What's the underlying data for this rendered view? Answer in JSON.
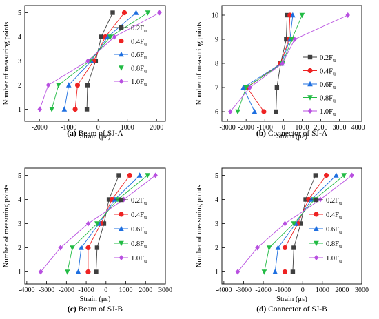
{
  "figure": {
    "panels": [
      {
        "caption_letter": "(a)",
        "caption_text": "Beam of SJ-A",
        "xlabel": "Strain",
        "xunit": "(με)",
        "ylabel": "Number of measuring points",
        "legend_base": "F",
        "legend_sub": "u",
        "legend_labels": [
          "0.2",
          "0.4",
          "0.6",
          "0.8",
          "1.0"
        ]
      },
      {
        "caption_letter": "(b)",
        "caption_text": "Connector of SJ-A",
        "xlabel": "Strain",
        "xunit": "(με)",
        "ylabel": "Number of measuring points",
        "legend_base": "F",
        "legend_sub": "u",
        "legend_labels": [
          "0.2",
          "0.4",
          "0.6",
          "0.8",
          "1.0"
        ]
      },
      {
        "caption_letter": "(c)",
        "caption_text": "Beam of SJ-B",
        "xlabel": "Strain",
        "xunit": "(με)",
        "ylabel": "Number of measuring points",
        "legend_base": "F",
        "legend_sub": "u",
        "legend_labels": [
          "0.2",
          "0.4",
          "0.6",
          "0.8",
          "1.0"
        ]
      },
      {
        "caption_letter": "(d)",
        "caption_text": "Connector of SJ-B",
        "xlabel": "Strain",
        "xunit": "(με)",
        "ylabel": "Number of measuring points",
        "legend_base": "F",
        "legend_sub": "u",
        "legend_labels": [
          "0.2",
          "0.4",
          "0.6",
          "0.8",
          "1.0"
        ]
      }
    ]
  },
  "colors": {
    "series": [
      "#3f3f3f",
      "#ee2222",
      "#1e6fe0",
      "#22bb44",
      "#b84fe0"
    ],
    "markers": [
      "square",
      "circle",
      "triangle-up",
      "triangle-down",
      "diamond"
    ]
  },
  "chart_data": [
    {
      "type": "line",
      "title": "Beam of SJ-A",
      "xlabel": "Strain (με)",
      "ylabel": "Number of measuring points",
      "xlim": [
        -2500,
        2300
      ],
      "ylim": [
        0.5,
        5.3
      ],
      "xticks": [
        -2000,
        -1000,
        0,
        1000,
        2000
      ],
      "yticks": [
        1,
        2,
        3,
        4,
        5
      ],
      "legend": "right",
      "grid": false,
      "series": [
        {
          "name": "0.2Fu",
          "points": [
            [
              -380,
              1
            ],
            [
              -360,
              2
            ],
            [
              -80,
              3
            ],
            [
              110,
              4
            ],
            [
              500,
              5
            ]
          ]
        },
        {
          "name": "0.4Fu",
          "points": [
            [
              -780,
              1
            ],
            [
              -700,
              2
            ],
            [
              -150,
              3
            ],
            [
              250,
              4
            ],
            [
              900,
              5
            ]
          ]
        },
        {
          "name": "0.6Fu",
          "points": [
            [
              -1150,
              1
            ],
            [
              -1000,
              2
            ],
            [
              -230,
              3
            ],
            [
              330,
              4
            ],
            [
              1300,
              5
            ]
          ]
        },
        {
          "name": "0.8Fu",
          "points": [
            [
              -1580,
              1
            ],
            [
              -1350,
              2
            ],
            [
              -280,
              3
            ],
            [
              420,
              4
            ],
            [
              1700,
              5
            ]
          ]
        },
        {
          "name": "1.0Fu",
          "points": [
            [
              -1990,
              1
            ],
            [
              -1700,
              2
            ],
            [
              -350,
              3
            ],
            [
              560,
              4
            ],
            [
              2100,
              5
            ]
          ]
        }
      ]
    },
    {
      "type": "line",
      "title": "Connector of SJ-A",
      "xlabel": "Strain (με)",
      "ylabel": "Number of measuring points",
      "xlim": [
        -3300,
        4200
      ],
      "ylim": [
        5.6,
        10.4
      ],
      "xticks": [
        -3000,
        -2000,
        -1000,
        0,
        1000,
        2000,
        3000,
        4000
      ],
      "yticks": [
        6,
        7,
        8,
        9,
        10
      ],
      "legend": "right",
      "grid": false,
      "series": [
        {
          "name": "0.2Fu",
          "points": [
            [
              -400,
              6
            ],
            [
              -350,
              7
            ],
            [
              -150,
              8
            ],
            [
              150,
              9
            ],
            [
              200,
              10
            ]
          ]
        },
        {
          "name": "0.4Fu",
          "points": [
            [
              -1050,
              6
            ],
            [
              -1950,
              7
            ],
            [
              -150,
              8
            ],
            [
              300,
              9
            ],
            [
              350,
              10
            ]
          ]
        },
        {
          "name": "0.6Fu",
          "points": [
            [
              -1550,
              6
            ],
            [
              -2150,
              7
            ],
            [
              -100,
              8
            ],
            [
              350,
              9
            ],
            [
              500,
              10
            ]
          ]
        },
        {
          "name": "0.8Fu",
          "points": [
            [
              -2450,
              6
            ],
            [
              -2000,
              7
            ],
            [
              -50,
              8
            ],
            [
              450,
              9
            ],
            [
              1000,
              10
            ]
          ]
        },
        {
          "name": "1.0Fu",
          "points": [
            [
              -2850,
              6
            ],
            [
              -1800,
              7
            ],
            [
              -50,
              8
            ],
            [
              600,
              9
            ],
            [
              3450,
              10
            ]
          ]
        }
      ]
    },
    {
      "type": "line",
      "title": "Beam of SJ-B",
      "xlabel": "Strain (με)",
      "ylabel": "Number of measuring points",
      "xlim": [
        -4100,
        3000
      ],
      "ylim": [
        0.5,
        5.3
      ],
      "xticks": [
        -4000,
        -3000,
        -2000,
        -1000,
        0,
        1000,
        2000,
        3000
      ],
      "yticks": [
        1,
        2,
        3,
        4,
        5
      ],
      "legend": "right",
      "grid": false,
      "series": [
        {
          "name": "0.2Fu",
          "points": [
            [
              -500,
              1
            ],
            [
              -450,
              2
            ],
            [
              -100,
              3
            ],
            [
              150,
              4
            ],
            [
              650,
              5
            ]
          ]
        },
        {
          "name": "0.4Fu",
          "points": [
            [
              -900,
              1
            ],
            [
              -900,
              2
            ],
            [
              -250,
              3
            ],
            [
              300,
              4
            ],
            [
              1200,
              5
            ]
          ]
        },
        {
          "name": "0.6Fu",
          "points": [
            [
              -1400,
              1
            ],
            [
              -1250,
              2
            ],
            [
              -350,
              3
            ],
            [
              450,
              4
            ],
            [
              1700,
              5
            ]
          ]
        },
        {
          "name": "0.8Fu",
          "points": [
            [
              -1950,
              1
            ],
            [
              -1700,
              2
            ],
            [
              -450,
              3
            ],
            [
              600,
              4
            ],
            [
              2100,
              5
            ]
          ]
        },
        {
          "name": "1.0Fu",
          "points": [
            [
              -3300,
              1
            ],
            [
              -2300,
              2
            ],
            [
              -900,
              3
            ],
            [
              900,
              4
            ],
            [
              2500,
              5
            ]
          ]
        }
      ]
    },
    {
      "type": "line",
      "title": "Connector of SJ-B",
      "xlabel": "Strain (με)",
      "ylabel": "Number of measuring points",
      "xlim": [
        -4100,
        3000
      ],
      "ylim": [
        0.5,
        5.3
      ],
      "xticks": [
        -4000,
        -3000,
        -2000,
        -1000,
        0,
        1000,
        2000,
        3000
      ],
      "yticks": [
        1,
        2,
        3,
        4,
        5
      ],
      "legend": "right",
      "grid": false,
      "series": [
        {
          "name": "0.2Fu",
          "points": [
            [
              -500,
              1
            ],
            [
              -450,
              2
            ],
            [
              -100,
              3
            ],
            [
              150,
              4
            ],
            [
              650,
              5
            ]
          ]
        },
        {
          "name": "0.4Fu",
          "points": [
            [
              -900,
              1
            ],
            [
              -900,
              2
            ],
            [
              -250,
              3
            ],
            [
              300,
              4
            ],
            [
              1200,
              5
            ]
          ]
        },
        {
          "name": "0.6Fu",
          "points": [
            [
              -1400,
              1
            ],
            [
              -1250,
              2
            ],
            [
              -350,
              3
            ],
            [
              450,
              4
            ],
            [
              1700,
              5
            ]
          ]
        },
        {
          "name": "0.8Fu",
          "points": [
            [
              -1950,
              1
            ],
            [
              -1700,
              2
            ],
            [
              -450,
              3
            ],
            [
              600,
              4
            ],
            [
              2100,
              5
            ]
          ]
        },
        {
          "name": "1.0Fu",
          "points": [
            [
              -3300,
              1
            ],
            [
              -2300,
              2
            ],
            [
              -900,
              3
            ],
            [
              900,
              4
            ],
            [
              2500,
              5
            ]
          ]
        }
      ]
    }
  ]
}
